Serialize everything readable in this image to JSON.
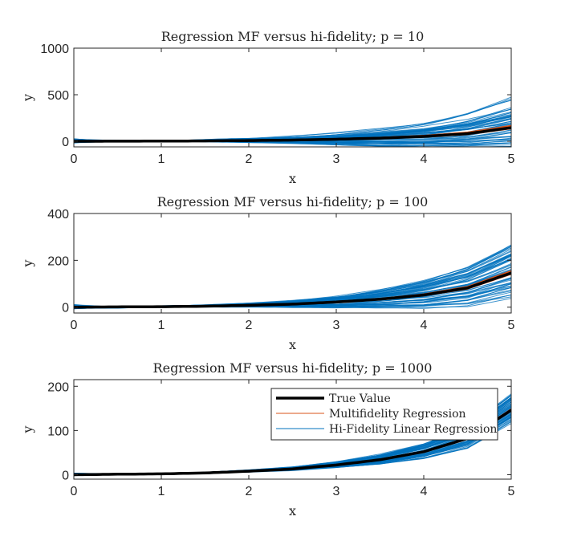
{
  "chart_data": [
    {
      "type": "line",
      "title": "Regression MF versus hi-fidelity; p = 10",
      "xlabel": "x",
      "ylabel": "y",
      "xlim": [
        0,
        5
      ],
      "ylim": [
        -60,
        1000
      ],
      "xticks": [
        0,
        1,
        2,
        3,
        4,
        5
      ],
      "yticks": [
        0,
        500,
        1000
      ],
      "spread": 190,
      "legend": false,
      "series": [
        {
          "label": "True Value",
          "x": [
            0,
            0.5,
            1,
            1.5,
            2,
            2.5,
            3,
            3.5,
            4,
            4.5,
            5
          ],
          "y": [
            0,
            1.2,
            2,
            4,
            8,
            13,
            22,
            34,
            52,
            82,
            146
          ]
        },
        {
          "label": "Multifidelity Regression",
          "x": [
            0,
            0.5,
            1,
            1.5,
            2,
            2.5,
            3,
            3.5,
            4,
            4.5,
            5
          ],
          "y": [
            -2,
            2,
            3,
            5,
            9,
            14,
            23,
            35,
            53,
            84,
            150
          ]
        },
        {
          "label": "Hi-Fidelity Linear Regression",
          "x": [
            0,
            0.5,
            1,
            1.5,
            2,
            2.5,
            3,
            3.5,
            4,
            4.5,
            5
          ],
          "y": [
            3,
            1,
            4,
            6,
            9,
            16,
            22,
            36,
            55,
            95,
            170
          ]
        }
      ]
    },
    {
      "type": "line",
      "title": "Regression MF versus hi-fidelity; p = 100",
      "xlabel": "x",
      "ylabel": "y",
      "xlim": [
        0,
        5
      ],
      "ylim": [
        -25,
        400
      ],
      "xticks": [
        0,
        1,
        2,
        3,
        4,
        5
      ],
      "yticks": [
        0,
        200,
        400
      ],
      "spread": 70,
      "legend": false,
      "series": [
        {
          "label": "True Value",
          "x": [
            0,
            0.5,
            1,
            1.5,
            2,
            2.5,
            3,
            3.5,
            4,
            4.5,
            5
          ],
          "y": [
            0,
            1.2,
            2,
            4,
            8,
            13,
            22,
            34,
            52,
            82,
            146
          ]
        },
        {
          "label": "Multifidelity Regression",
          "x": [
            0,
            0.5,
            1,
            1.5,
            2,
            2.5,
            3,
            3.5,
            4,
            4.5,
            5
          ],
          "y": [
            -1,
            1.5,
            2.5,
            4.5,
            8.5,
            13.5,
            22.5,
            34.5,
            52.5,
            83,
            148
          ]
        },
        {
          "label": "Hi-Fidelity Linear Regression",
          "x": [
            0,
            0.5,
            1,
            1.5,
            2,
            2.5,
            3,
            3.5,
            4,
            4.5,
            5
          ],
          "y": [
            2,
            0,
            3,
            5,
            9,
            14,
            21,
            35,
            54,
            88,
            155
          ]
        }
      ]
    },
    {
      "type": "line",
      "title": "Regression MF versus hi-fidelity; p = 1000",
      "xlabel": "x",
      "ylabel": "y",
      "xlim": [
        0,
        5
      ],
      "ylim": [
        -10,
        215
      ],
      "xticks": [
        0,
        1,
        2,
        3,
        4,
        5
      ],
      "yticks": [
        0,
        100,
        200
      ],
      "spread": 20,
      "legend": true,
      "legend_position": "top-right",
      "series": [
        {
          "label": "True Value",
          "x": [
            0,
            0.5,
            1,
            1.5,
            2,
            2.5,
            3,
            3.5,
            4,
            4.5,
            5
          ],
          "y": [
            0,
            1.2,
            2,
            4,
            8,
            13,
            22,
            34,
            52,
            82,
            146
          ]
        },
        {
          "label": "Multifidelity Regression",
          "x": [
            0,
            0.5,
            1,
            1.5,
            2,
            2.5,
            3,
            3.5,
            4,
            4.5,
            5
          ],
          "y": [
            0,
            1.3,
            2.1,
            4.1,
            8.1,
            13.1,
            22.1,
            34.1,
            52.2,
            82.5,
            147
          ]
        },
        {
          "label": "Hi-Fidelity Linear Regression",
          "x": [
            0,
            0.5,
            1,
            1.5,
            2,
            2.5,
            3,
            3.5,
            4,
            4.5,
            5
          ],
          "y": [
            1,
            1.5,
            2.5,
            4.5,
            8.5,
            13.5,
            22.5,
            34.5,
            53,
            84,
            150
          ]
        }
      ]
    }
  ],
  "colors": {
    "true_value": "#000000",
    "multifidelity": "#d95319",
    "hifi": "#0072bd",
    "axes": "#262626"
  }
}
